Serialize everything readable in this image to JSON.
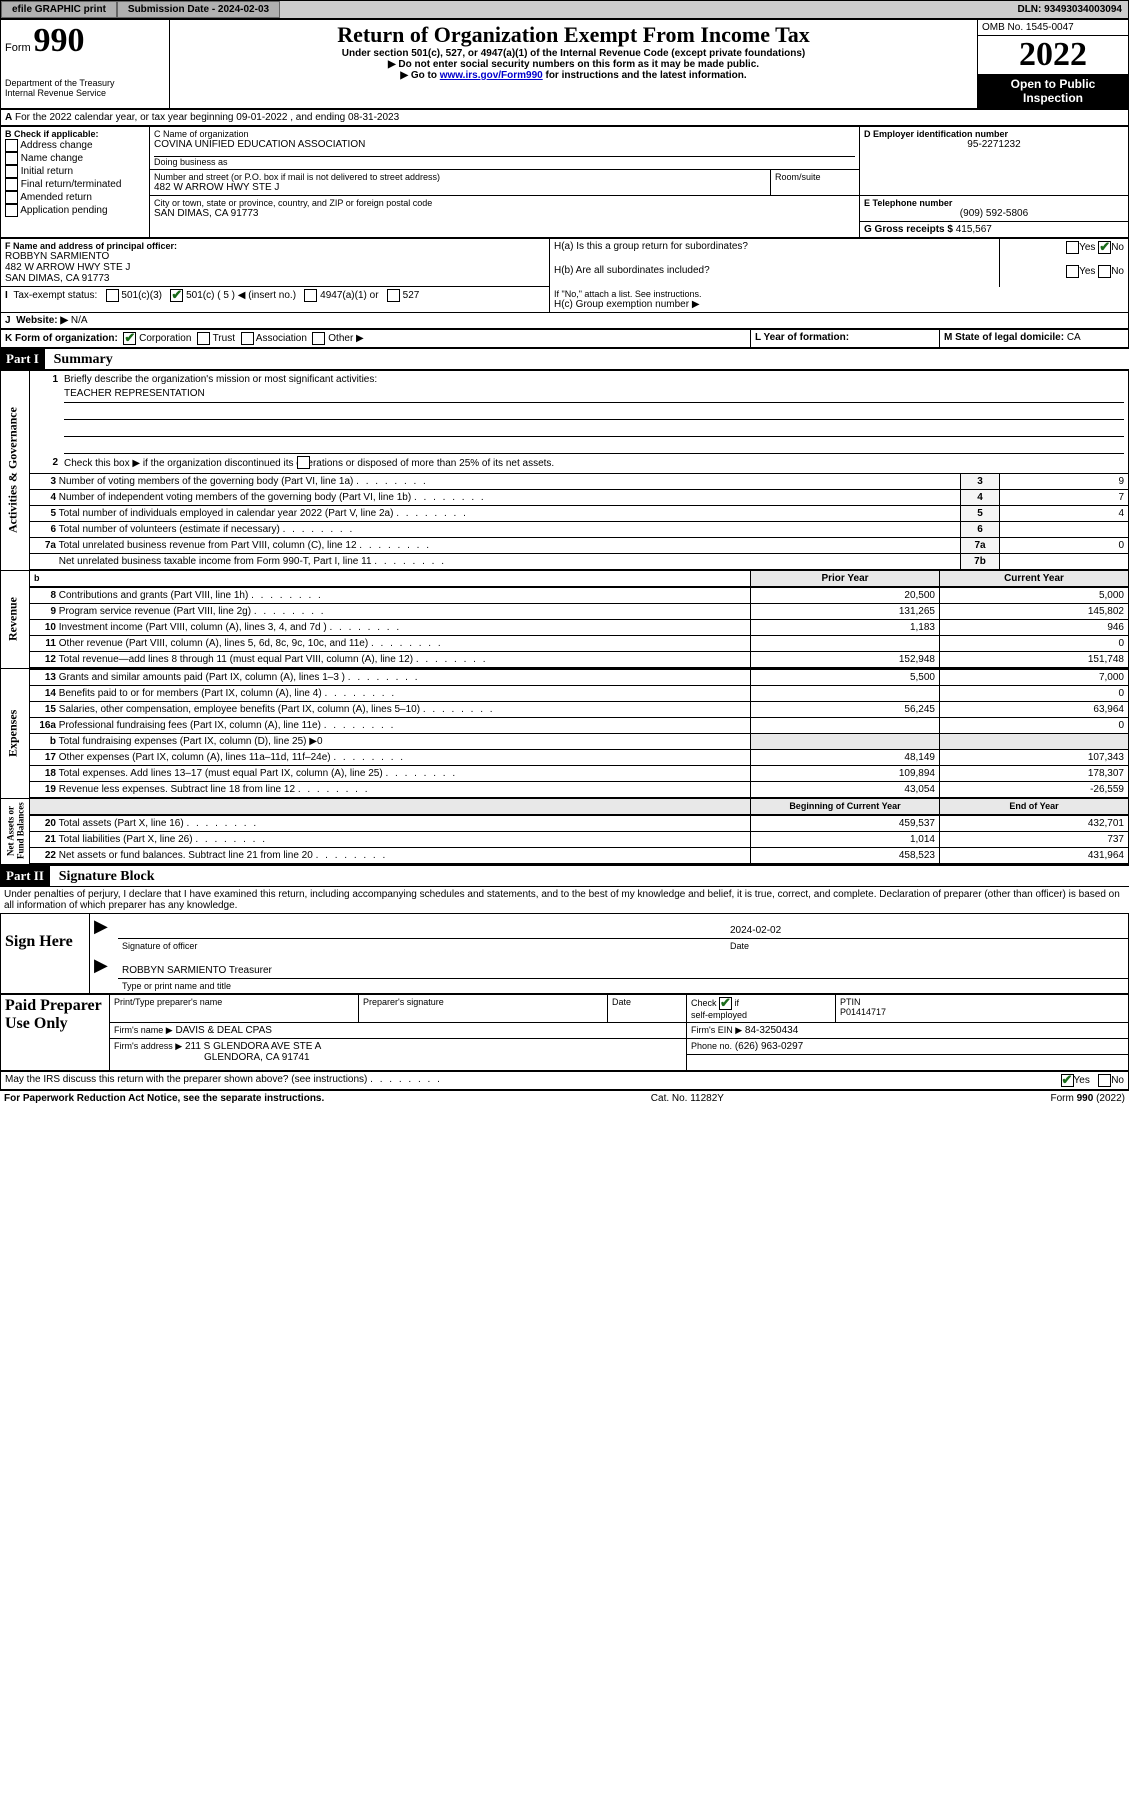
{
  "topbar": {
    "efile": "efile GRAPHIC print",
    "submission": "Submission Date - 2024-02-03",
    "dln": "DLN: 93493034003094"
  },
  "header": {
    "form_label_sm": "Form",
    "form_label": "990",
    "title": "Return of Organization Exempt From Income Tax",
    "subtitle1": "Under section 501(c), 527, or 4947(a)(1) of the Internal Revenue Code (except private foundations)",
    "subtitle2": "Do not enter social security numbers on this form as it may be made public.",
    "subtitle3_pre": "Go to ",
    "subtitle3_link": "www.irs.gov/Form990",
    "subtitle3_post": " for instructions and the latest information.",
    "dept": "Department of the Treasury\nInternal Revenue Service",
    "omb": "OMB No. 1545-0047",
    "year": "2022",
    "inspection": "Open to Public Inspection"
  },
  "a_line": "For the 2022 calendar year, or tax year beginning 09-01-2022   , and ending 08-31-2023",
  "boxB": {
    "label": "B Check if applicable:",
    "items": [
      "Address change",
      "Name change",
      "Initial return",
      "Final return/terminated",
      "Amended return",
      "Application pending"
    ]
  },
  "boxC": {
    "name_label": "C Name of organization",
    "name": "COVINA UNIFIED EDUCATION ASSOCIATION",
    "dba_label": "Doing business as",
    "dba": "",
    "street_label": "Number and street (or P.O. box if mail is not delivered to street address)",
    "room_label": "Room/suite",
    "street": "482 W ARROW HWY STE J",
    "city_label": "City or town, state or province, country, and ZIP or foreign postal code",
    "city": "SAN DIMAS, CA  91773"
  },
  "boxD": {
    "label": "D Employer identification number",
    "value": "95-2271232"
  },
  "boxE": {
    "label": "E Telephone number",
    "value": "(909) 592-5806"
  },
  "boxG": {
    "label": "G Gross receipts $",
    "value": "415,567"
  },
  "boxF": {
    "label": "F Name and address of principal officer:",
    "name": "ROBBYN SARMIENTO",
    "addr1": "482 W ARROW HWY STE J",
    "addr2": "SAN DIMAS, CA  91773"
  },
  "boxH": {
    "ha": "H(a)  Is this a group return for subordinates?",
    "hb": "H(b)  Are all subordinates included?",
    "hb_note": "If \"No,\" attach a list. See instructions.",
    "hc": "H(c)  Group exemption number ▶",
    "yes": "Yes",
    "no": "No"
  },
  "taxI": {
    "label": "Tax-exempt status:",
    "opts": [
      "501(c)(3)",
      "501(c) ( 5 ) ◀ (insert no.)",
      "4947(a)(1) or",
      "527"
    ]
  },
  "boxJ": {
    "label": "Website: ▶",
    "value": "N/A"
  },
  "boxK": {
    "label": "K Form of organization:",
    "opts": [
      "Corporation",
      "Trust",
      "Association",
      "Other ▶"
    ]
  },
  "boxL": {
    "label": "L Year of formation:",
    "value": ""
  },
  "boxM": {
    "label": "M State of legal domicile:",
    "value": "CA"
  },
  "partI": {
    "label": "Part I",
    "title": "Summary"
  },
  "mission_label": "Briefly describe the organization's mission or most significant activities:",
  "mission": "TEACHER REPRESENTATION",
  "line2": "Check this box ▶        if the organization discontinued its operations or disposed of more than 25% of its net assets.",
  "governance": [
    {
      "n": "3",
      "d": "Number of voting members of the governing body (Part VI, line 1a)",
      "k": "3",
      "v": "9"
    },
    {
      "n": "4",
      "d": "Number of independent voting members of the governing body (Part VI, line 1b)",
      "k": "4",
      "v": "7"
    },
    {
      "n": "5",
      "d": "Total number of individuals employed in calendar year 2022 (Part V, line 2a)",
      "k": "5",
      "v": "4"
    },
    {
      "n": "6",
      "d": "Total number of volunteers (estimate if necessary)",
      "k": "6",
      "v": ""
    },
    {
      "n": "7a",
      "d": "Total unrelated business revenue from Part VIII, column (C), line 12",
      "k": "7a",
      "v": "0"
    },
    {
      "n": "",
      "d": "Net unrelated business taxable income from Form 990-T, Part I, line 11",
      "k": "7b",
      "v": ""
    }
  ],
  "col_headers": {
    "b": "b",
    "prior": "Prior Year",
    "current": "Current Year"
  },
  "revenue": [
    {
      "n": "8",
      "d": "Contributions and grants (Part VIII, line 1h)",
      "p": "20,500",
      "c": "5,000"
    },
    {
      "n": "9",
      "d": "Program service revenue (Part VIII, line 2g)",
      "p": "131,265",
      "c": "145,802"
    },
    {
      "n": "10",
      "d": "Investment income (Part VIII, column (A), lines 3, 4, and 7d )",
      "p": "1,183",
      "c": "946"
    },
    {
      "n": "11",
      "d": "Other revenue (Part VIII, column (A), lines 5, 6d, 8c, 9c, 10c, and 11e)",
      "p": "",
      "c": "0"
    },
    {
      "n": "12",
      "d": "Total revenue—add lines 8 through 11 (must equal Part VIII, column (A), line 12)",
      "p": "152,948",
      "c": "151,748"
    }
  ],
  "expenses": [
    {
      "n": "13",
      "d": "Grants and similar amounts paid (Part IX, column (A), lines 1–3 )",
      "p": "5,500",
      "c": "7,000"
    },
    {
      "n": "14",
      "d": "Benefits paid to or for members (Part IX, column (A), line 4)",
      "p": "",
      "c": "0"
    },
    {
      "n": "15",
      "d": "Salaries, other compensation, employee benefits (Part IX, column (A), lines 5–10)",
      "p": "56,245",
      "c": "63,964"
    },
    {
      "n": "16a",
      "d": "Professional fundraising fees (Part IX, column (A), line 11e)",
      "p": "",
      "c": "0"
    },
    {
      "n": "b",
      "d": "Total fundraising expenses (Part IX, column (D), line 25) ▶0",
      "p": null,
      "c": null
    },
    {
      "n": "17",
      "d": "Other expenses (Part IX, column (A), lines 11a–11d, 11f–24e)",
      "p": "48,149",
      "c": "107,343"
    },
    {
      "n": "18",
      "d": "Total expenses. Add lines 13–17 (must equal Part IX, column (A), line 25)",
      "p": "109,894",
      "c": "178,307"
    },
    {
      "n": "19",
      "d": "Revenue less expenses. Subtract line 18 from line 12",
      "p": "43,054",
      "c": "-26,559"
    }
  ],
  "netassets_headers": {
    "begin": "Beginning of Current Year",
    "end": "End of Year"
  },
  "netassets": [
    {
      "n": "20",
      "d": "Total assets (Part X, line 16)",
      "p": "459,537",
      "c": "432,701"
    },
    {
      "n": "21",
      "d": "Total liabilities (Part X, line 26)",
      "p": "1,014",
      "c": "737"
    },
    {
      "n": "22",
      "d": "Net assets or fund balances. Subtract line 21 from line 20",
      "p": "458,523",
      "c": "431,964"
    }
  ],
  "partII": {
    "label": "Part II",
    "title": "Signature Block"
  },
  "declaration": "Under penalties of perjury, I declare that I have examined this return, including accompanying schedules and statements, and to the best of my knowledge and belief, it is true, correct, and complete. Declaration of preparer (other than officer) is based on all information of which preparer has any knowledge.",
  "sign": {
    "label": "Sign Here",
    "date": "2024-02-02",
    "sig_label": "Signature of officer",
    "date_label": "Date",
    "name": "ROBBYN SARMIENTO Treasurer",
    "name_label": "Type or print name and title"
  },
  "preparer": {
    "label": "Paid Preparer Use Only",
    "col1": "Print/Type preparer's name",
    "col2": "Preparer's signature",
    "col3": "Date",
    "self_label": "Check         if self-employed",
    "ptin_label": "PTIN",
    "ptin": "P01414717",
    "firm_name_label": "Firm's name     ▶",
    "firm_name": "DAVIS & DEAL CPAS",
    "firm_ein_label": "Firm's EIN ▶",
    "firm_ein": "84-3250434",
    "firm_addr_label": "Firm's address ▶",
    "firm_addr1": "211 S GLENDORA AVE STE A",
    "firm_addr2": "GLENDORA, CA  91741",
    "phone_label": "Phone no.",
    "phone": "(626) 963-0297"
  },
  "discuss": "May the IRS discuss this return with the preparer shown above? (see instructions)",
  "footer": {
    "left": "For Paperwork Reduction Act Notice, see the separate instructions.",
    "mid": "Cat. No. 11282Y",
    "right": "Form 990 (2022)"
  },
  "yesno": {
    "yes": "Yes",
    "no": "No"
  }
}
